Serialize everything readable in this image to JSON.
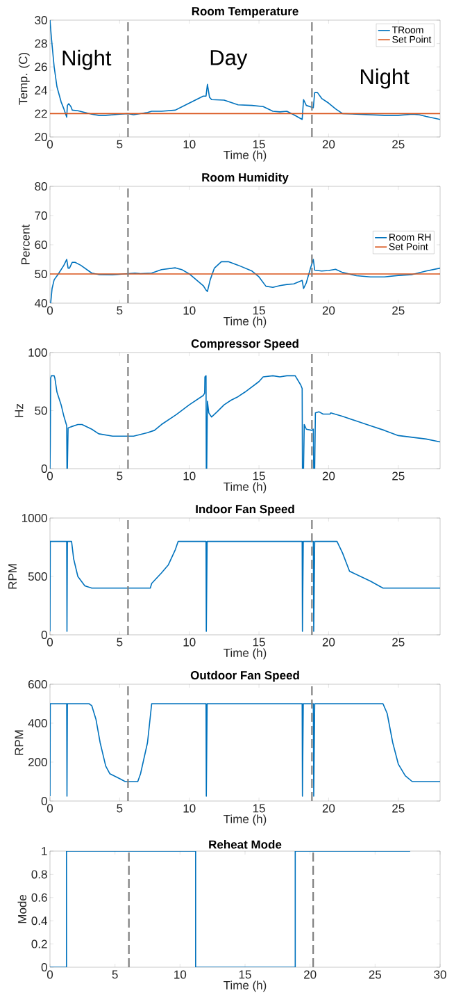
{
  "chart_data": [
    {
      "type": "line",
      "title": "Room Temperature",
      "xlabel": "Time (h)",
      "ylabel": "Temp. (C)",
      "xlim": [
        0,
        28
      ],
      "xticks": [
        0,
        5,
        10,
        15,
        20,
        25
      ],
      "ylim": [
        20,
        30
      ],
      "yticks": [
        20,
        22,
        24,
        26,
        28,
        30
      ],
      "legend": "top right",
      "series": [
        {
          "name": "TRoom",
          "color": "#0072bd",
          "x": [
            0,
            0.1,
            0.3,
            0.5,
            0.8,
            1.0,
            1.2,
            1.25,
            1.35,
            1.5,
            1.6,
            2,
            2.5,
            3,
            3.5,
            4,
            5,
            5.6,
            6,
            6.5,
            7,
            7.3,
            8,
            9,
            10,
            11,
            11.2,
            11.3,
            11.45,
            11.6,
            12.5,
            13.5,
            14.5,
            15.3,
            16,
            16.5,
            17,
            17.5,
            18.1,
            18.2,
            18.4,
            18.8,
            18.9,
            19.0,
            19.2,
            19.5,
            20,
            20.5,
            21,
            22,
            24,
            25,
            26,
            26.5,
            27,
            28
          ],
          "values": [
            30,
            28.5,
            26,
            24.3,
            23.0,
            22.4,
            21.7,
            22.7,
            22.85,
            22.6,
            22.3,
            22.25,
            22.1,
            21.95,
            21.85,
            21.85,
            21.95,
            22,
            21.9,
            22.0,
            22.1,
            22.2,
            22.2,
            22.3,
            22.9,
            23.5,
            23.5,
            24.5,
            23.4,
            23.2,
            23.15,
            22.75,
            22.7,
            22.6,
            22.2,
            22.15,
            22.2,
            21.9,
            21.5,
            23.2,
            22.7,
            22.55,
            22.5,
            23.8,
            23.8,
            23.3,
            22.9,
            22.4,
            22.0,
            21.95,
            21.85,
            21.85,
            21.95,
            21.9,
            21.75,
            21.5
          ]
        },
        {
          "name": "Set Point",
          "color": "#d95319",
          "x": [
            0,
            28
          ],
          "values": [
            22,
            22
          ]
        }
      ],
      "ref_lines": [
        {
          "axis": "x",
          "value": 5.6,
          "color": "#808080",
          "line_style": "dashed"
        },
        {
          "axis": "x",
          "value": 18.8,
          "color": "#808080",
          "line_style": "dashed"
        }
      ],
      "annotations": [
        "Night",
        "Day",
        "Night"
      ]
    },
    {
      "type": "line",
      "title": "Room Humidity",
      "xlabel": "Time (h)",
      "ylabel": "Percent",
      "xlim": [
        0,
        28
      ],
      "xticks": [
        0,
        5,
        10,
        15,
        20,
        25
      ],
      "ylim": [
        40,
        80
      ],
      "yticks": [
        40,
        50,
        60,
        70,
        80
      ],
      "legend": "right",
      "series": [
        {
          "name": "Room RH",
          "color": "#0072bd",
          "x": [
            0.05,
            0.15,
            0.3,
            0.6,
            1.0,
            1.2,
            1.3,
            1.4,
            1.6,
            1.8,
            2.2,
            3,
            3.5,
            4.5,
            6.1,
            6.5,
            7.3,
            8,
            9,
            9.5,
            10,
            11,
            11.2,
            11.3,
            11.5,
            11.8,
            12.3,
            12.8,
            13.5,
            14.5,
            15,
            15.5,
            16,
            16.5,
            17,
            17.5,
            18.1,
            18.2,
            18.4,
            18.7,
            18.9,
            19.0,
            19.5,
            20,
            20.5,
            21,
            22,
            23,
            24,
            25,
            26,
            27,
            28
          ],
          "values": [
            40,
            45,
            48,
            50,
            53,
            55,
            52,
            52,
            54,
            54,
            53,
            50.3,
            49.8,
            49.7,
            50.3,
            50.1,
            50.3,
            51.5,
            52.1,
            51.4,
            50,
            46,
            44.5,
            44,
            48,
            52,
            54.2,
            54.2,
            53,
            51,
            49,
            45.8,
            45.4,
            46,
            46.4,
            46.6,
            47.8,
            45,
            47,
            52,
            55,
            51.3,
            51,
            51.2,
            51.6,
            50.5,
            49.4,
            49,
            49,
            49.5,
            49.8,
            51,
            52
          ]
        },
        {
          "name": "Set Point",
          "color": "#d95319",
          "x": [
            0,
            28
          ],
          "values": [
            50,
            50
          ]
        }
      ],
      "ref_lines": [
        {
          "axis": "x",
          "value": 5.6,
          "color": "#808080",
          "line_style": "dashed"
        },
        {
          "axis": "x",
          "value": 18.8,
          "color": "#808080",
          "line_style": "dashed"
        }
      ]
    },
    {
      "type": "line",
      "title": "Compressor Speed",
      "xlabel": "Time (h)",
      "ylabel": "Hz",
      "xlim": [
        0,
        28
      ],
      "xticks": [
        0,
        5,
        10,
        15,
        20,
        25
      ],
      "ylim": [
        0,
        100
      ],
      "yticks": [
        0,
        50,
        100
      ],
      "series": [
        {
          "color": "#0072bd",
          "x": [
            0,
            0.02,
            0.05,
            0.1,
            0.3,
            0.35,
            0.5,
            0.8,
            1.0,
            1.2,
            1.22,
            1.25,
            1.3,
            1.5,
            2,
            2.3,
            3,
            3.5,
            4.5,
            5.6,
            6,
            7,
            7.5,
            8,
            9,
            10,
            11,
            11.1,
            11.12,
            11.2,
            11.22,
            11.25,
            11.3,
            11.4,
            11.6,
            12,
            12.5,
            13,
            13.5,
            14,
            15,
            15.3,
            16,
            16.5,
            17,
            17.6,
            18,
            18.1,
            18.12,
            18.2,
            18.25,
            18.4,
            18.8,
            18.9,
            18.93,
            19.0,
            19.05,
            19.3,
            19.6,
            20.1,
            20.15,
            21,
            22,
            23,
            24,
            25,
            26,
            27,
            28
          ],
          "values": [
            0,
            20,
            78,
            80,
            80,
            78,
            66,
            55,
            45,
            37,
            0,
            0,
            35,
            36,
            38,
            38,
            34,
            30,
            28,
            28,
            28,
            31,
            33,
            38,
            46,
            55,
            63,
            65,
            79,
            80,
            0,
            0,
            58,
            48,
            44.5,
            49,
            55,
            59,
            62,
            66,
            75,
            79,
            80,
            79,
            80,
            80,
            72,
            69,
            0,
            0,
            38,
            34,
            33,
            34,
            0,
            0,
            48,
            49,
            47,
            47,
            48,
            45,
            41,
            37,
            33,
            28.5,
            27,
            25.5,
            23
          ]
        }
      ],
      "ref_lines": [
        {
          "axis": "x",
          "value": 5.6,
          "color": "#808080",
          "line_style": "dashed"
        },
        {
          "axis": "x",
          "value": 18.8,
          "color": "#808080",
          "line_style": "dashed"
        }
      ]
    },
    {
      "type": "line",
      "title": "Indoor Fan Speed",
      "xlabel": "Time (h)",
      "ylabel": "RPM",
      "xlim": [
        0,
        28
      ],
      "xticks": [
        0,
        5,
        10,
        15,
        20,
        25
      ],
      "ylim": [
        0,
        1000
      ],
      "yticks": [
        0,
        500,
        1000
      ],
      "series": [
        {
          "color": "#0072bd",
          "x": [
            0,
            0.02,
            1.2,
            1.22,
            1.25,
            1.55,
            1.7,
            2,
            2.5,
            3,
            7.2,
            7.3,
            8,
            8.5,
            9,
            9.2,
            11.2,
            11.22,
            11.28,
            18.1,
            18.12,
            18.18,
            18.9,
            18.93,
            19.0,
            20.6,
            21,
            21.5,
            23,
            23.9,
            28
          ],
          "values": [
            30,
            800,
            800,
            30,
            800,
            800,
            650,
            500,
            420,
            400,
            400,
            440,
            530,
            600,
            730,
            800,
            800,
            30,
            800,
            800,
            30,
            800,
            800,
            30,
            800,
            800,
            700,
            545,
            460,
            400,
            400
          ]
        }
      ],
      "ref_lines": [
        {
          "axis": "x",
          "value": 5.6,
          "color": "#808080",
          "line_style": "dashed"
        },
        {
          "axis": "x",
          "value": 18.8,
          "color": "#808080",
          "line_style": "dashed"
        }
      ]
    },
    {
      "type": "line",
      "title": "Outdoor Fan Speed",
      "xlabel": "Time (h)",
      "ylabel": "RPM",
      "xlim": [
        0,
        28
      ],
      "xticks": [
        0,
        5,
        10,
        15,
        20,
        25
      ],
      "ylim": [
        0,
        600
      ],
      "yticks": [
        0,
        200,
        400,
        600
      ],
      "series": [
        {
          "color": "#0072bd",
          "x": [
            0,
            0.02,
            1.2,
            1.22,
            1.25,
            2.8,
            3,
            3.3,
            3.6,
            4,
            4.3,
            5,
            5.4,
            6.3,
            6.5,
            7,
            7.3,
            11.2,
            11.22,
            11.28,
            18.1,
            18.12,
            18.18,
            18.9,
            18.93,
            19.0,
            23.9,
            24.2,
            24.6,
            25,
            25.5,
            26,
            28
          ],
          "values": [
            25,
            500,
            500,
            25,
            500,
            500,
            490,
            420,
            300,
            180,
            140,
            115,
            100,
            100,
            140,
            300,
            500,
            500,
            25,
            500,
            500,
            25,
            500,
            500,
            25,
            500,
            500,
            450,
            300,
            190,
            130,
            100,
            100
          ]
        }
      ],
      "ref_lines": [
        {
          "axis": "x",
          "value": 5.6,
          "color": "#808080",
          "line_style": "dashed"
        },
        {
          "axis": "x",
          "value": 18.8,
          "color": "#808080",
          "line_style": "dashed"
        }
      ]
    },
    {
      "type": "line",
      "title": "Reheat Mode",
      "xlabel": "Time (h)",
      "ylabel": "Mode",
      "xlim": [
        0,
        30
      ],
      "xticks": [
        0,
        5,
        10,
        15,
        20,
        25,
        30
      ],
      "ylim": [
        0,
        1
      ],
      "yticks": [
        0,
        0.2,
        0.4,
        0.6,
        0.8,
        1
      ],
      "series": [
        {
          "color": "#0072bd",
          "x": [
            0,
            1.27,
            1.27,
            11.2,
            11.2,
            18.86,
            18.86,
            27.7
          ],
          "values": [
            0,
            0,
            1,
            1,
            0,
            0,
            1,
            1
          ]
        }
      ],
      "ref_lines": [
        {
          "axis": "x",
          "value": 6.07,
          "color": "#808080",
          "line_style": "dashed"
        },
        {
          "axis": "x",
          "value": 20.24,
          "color": "#808080",
          "line_style": "dashed"
        }
      ]
    }
  ]
}
